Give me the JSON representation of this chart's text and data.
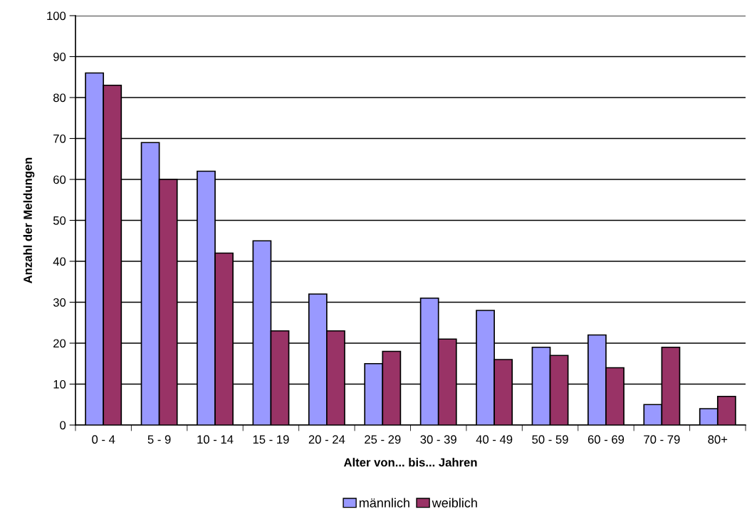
{
  "chart_data": {
    "type": "bar",
    "xlabel": "Alter von... bis... Jahren",
    "ylabel": "Anzahl der Meldungen",
    "categories": [
      "0 - 4",
      "5 - 9",
      "10 - 14",
      "15 - 19",
      "20 - 24",
      "25 - 29",
      "30 - 39",
      "40 - 49",
      "50 - 59",
      "60 - 69",
      "70 - 79",
      "80+"
    ],
    "series": [
      {
        "name": "männlich",
        "color": "#9999ff",
        "values": [
          86,
          69,
          62,
          45,
          32,
          15,
          31,
          28,
          19,
          22,
          5,
          4
        ]
      },
      {
        "name": "weiblich",
        "color": "#993366",
        "values": [
          83,
          60,
          42,
          23,
          23,
          18,
          21,
          16,
          17,
          14,
          19,
          7
        ]
      }
    ],
    "ylim": [
      0,
      100
    ],
    "yticks": [
      0,
      10,
      20,
      30,
      40,
      50,
      60,
      70,
      80,
      90,
      100
    ],
    "grid": "y",
    "legend": "bottom"
  }
}
